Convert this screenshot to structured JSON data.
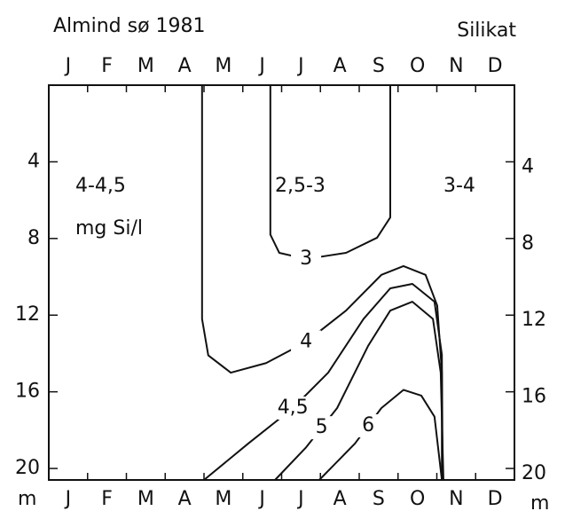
{
  "chart_data": {
    "type": "isopleth",
    "title": "Almind sø 1981",
    "subtitle": "Silikat",
    "ylabel": "m",
    "categories": [
      "J",
      "F",
      "M",
      "A",
      "M",
      "J",
      "J",
      "A",
      "S",
      "O",
      "N",
      "D"
    ],
    "ylim": [
      0,
      20.6
    ],
    "yticks": [
      4,
      8,
      12,
      16,
      20
    ],
    "xlim": [
      0,
      12
    ],
    "color": "#111111",
    "annotations": [
      "4-4,5",
      "mg Si/l",
      "2,5-3",
      "3-4"
    ],
    "series": [
      {
        "name": "3",
        "x": [
          5.71,
          5.71,
          5.94,
          6.63,
          7.66,
          8.46,
          8.8,
          8.8
        ],
        "values": [
          0,
          7.8,
          8.75,
          9.07,
          8.75,
          7.96,
          6.9,
          0
        ]
      },
      {
        "name": "4",
        "x": [
          3.95,
          3.95,
          4.11,
          4.69,
          5.6,
          6.63,
          7.66,
          8.57,
          9.14,
          9.71,
          10.01,
          10.13,
          10.13
        ],
        "values": [
          0,
          12.2,
          14.1,
          15.0,
          14.5,
          13.4,
          11.76,
          9.9,
          9.44,
          9.9,
          11.5,
          15.0,
          20.6
        ]
      },
      {
        "name": "4,5",
        "x": [
          4.0,
          5.14,
          6.29,
          7.2,
          8.11,
          8.8,
          9.37,
          9.94,
          10.13,
          10.15
        ],
        "values": [
          20.6,
          18.7,
          16.85,
          15.0,
          12.2,
          10.6,
          10.37,
          11.3,
          14.07,
          20.6
        ]
      },
      {
        "name": "5",
        "x": [
          5.83,
          6.63,
          7.43,
          8.23,
          8.8,
          9.37,
          9.9,
          10.1,
          10.17
        ],
        "values": [
          20.6,
          18.9,
          16.85,
          13.6,
          11.76,
          11.3,
          12.2,
          15.0,
          20.6
        ]
      },
      {
        "name": "6",
        "x": [
          6.97,
          7.89,
          8.57,
          9.14,
          9.6,
          9.94,
          10.13
        ],
        "values": [
          20.6,
          18.7,
          16.85,
          15.9,
          16.2,
          17.3,
          20.6
        ]
      }
    ]
  }
}
